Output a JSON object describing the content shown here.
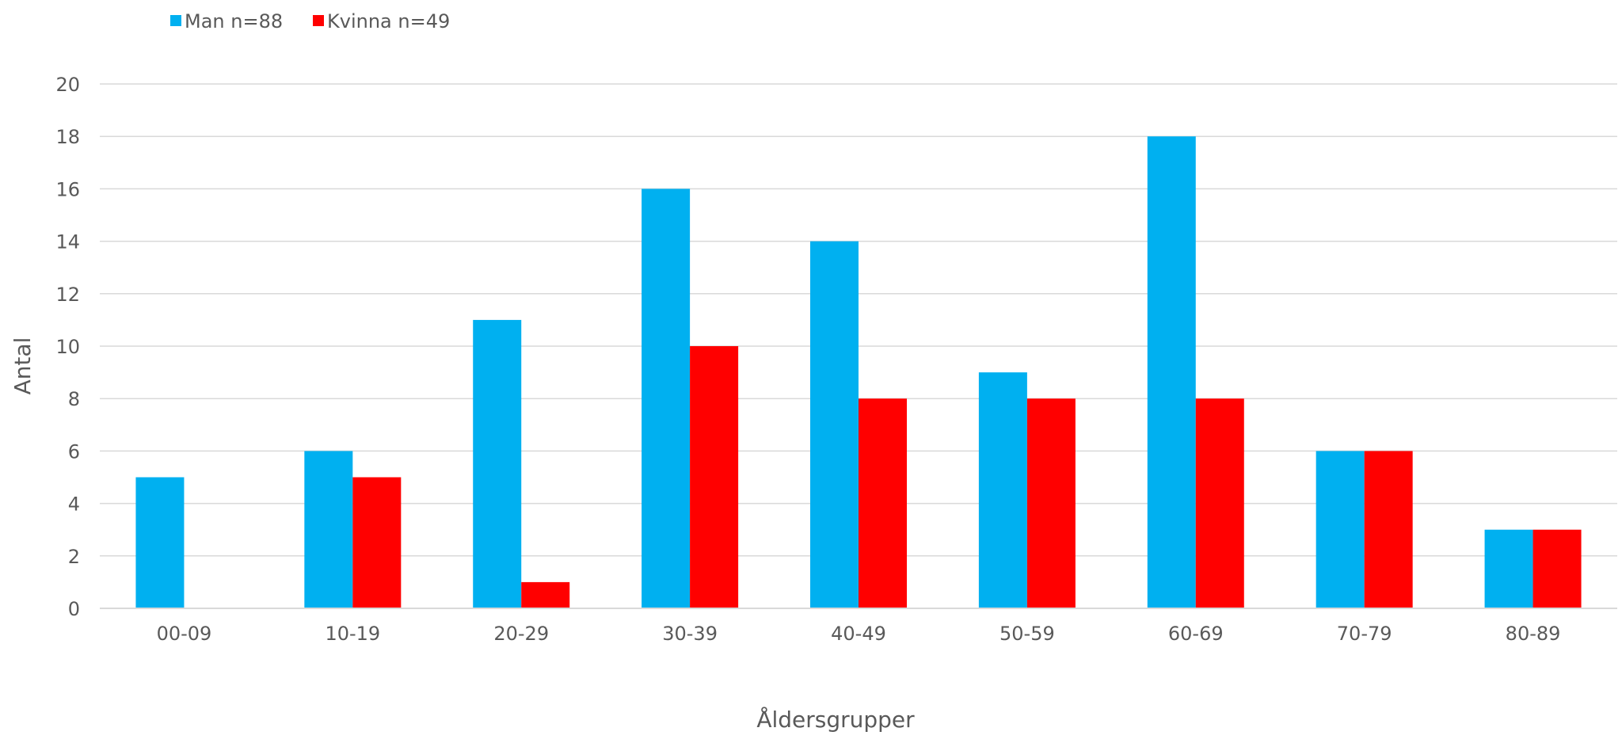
{
  "chart_data": {
    "type": "bar",
    "title": "",
    "xlabel": "Åldersgrupper",
    "ylabel": "Antal",
    "categories": [
      "00-09",
      "10-19",
      "20-29",
      "30-39",
      "40-49",
      "50-59",
      "60-69",
      "70-79",
      "80-89"
    ],
    "series": [
      {
        "name": "Man n=88",
        "color": "#00B0F0",
        "values": [
          5,
          6,
          11,
          16,
          14,
          9,
          18,
          6,
          3
        ]
      },
      {
        "name": "Kvinna n=49",
        "color": "#FF0000",
        "values": [
          0,
          5,
          1,
          10,
          8,
          8,
          8,
          6,
          3
        ]
      }
    ],
    "ylim": [
      0,
      20
    ],
    "yticks": [
      0,
      2,
      4,
      6,
      8,
      10,
      12,
      14,
      16,
      18,
      20
    ],
    "grid": true,
    "legend_position": "top-left"
  }
}
